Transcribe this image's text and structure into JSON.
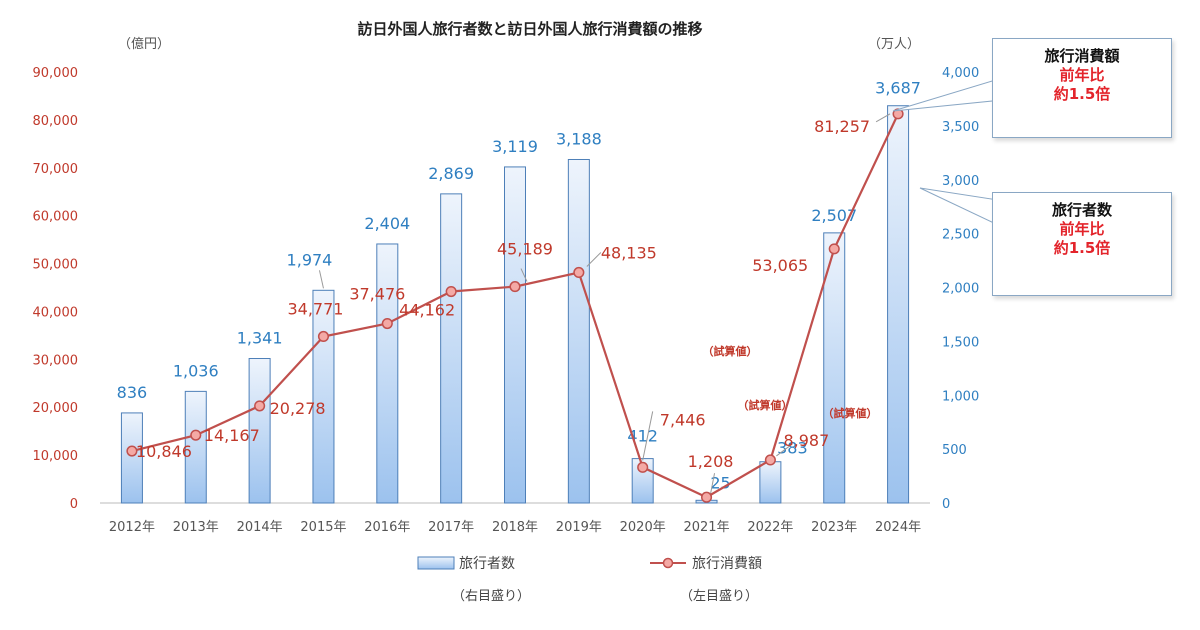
{
  "chart_data": {
    "type": "bar+line",
    "title": "訪日外国人旅行者数と訪日外国人旅行消費額の推移",
    "left_axis": {
      "unit": "（億円）",
      "min": 0,
      "max": 90000,
      "step": 10000,
      "ticks": [
        "0",
        "10,000",
        "20,000",
        "30,000",
        "40,000",
        "50,000",
        "60,000",
        "70,000",
        "80,000",
        "90,000"
      ]
    },
    "right_axis": {
      "unit": "（万人）",
      "min": 0,
      "max": 4000,
      "step": 500,
      "ticks": [
        "0",
        "500",
        "1,000",
        "1,500",
        "2,000",
        "2,500",
        "3,000",
        "3,500",
        "4,000"
      ]
    },
    "categories": [
      "2012年",
      "2013年",
      "2014年",
      "2015年",
      "2016年",
      "2017年",
      "2018年",
      "2019年",
      "2020年",
      "2021年",
      "2022年",
      "2023年",
      "2024年"
    ],
    "series": [
      {
        "name": "旅行者数",
        "type": "bar",
        "axis": "right",
        "values": [
          836,
          1036,
          1341,
          1974,
          2404,
          2869,
          3119,
          3188,
          412,
          25,
          383,
          2507,
          3687
        ],
        "labels": [
          "836",
          "1,036",
          "1,341",
          "1,974",
          "2,404",
          "2,869",
          "3,119",
          "3,188",
          "412",
          "25",
          "383",
          "2,507",
          "3,687"
        ]
      },
      {
        "name": "旅行消費額",
        "type": "line",
        "axis": "left",
        "values": [
          10846,
          14167,
          20278,
          34771,
          37476,
          44162,
          45189,
          48135,
          7446,
          1208,
          8987,
          53065,
          81257
        ],
        "labels": [
          "10,846",
          "14,167",
          "20,278",
          "34,771",
          "37,476",
          "44,162",
          "45,189",
          "48,135",
          "7,446",
          "1,208",
          "8,987",
          "53,065",
          "81,257"
        ]
      }
    ],
    "notes": [
      "（試算値）",
      "（試算値）",
      "（試算値）"
    ],
    "legend": [
      {
        "name": "旅行者数",
        "sub": "（右目盛り）"
      },
      {
        "name": "旅行消費額",
        "sub": "（左目盛り）"
      }
    ],
    "colors": {
      "bar_fill_top": "#eef4fc",
      "bar_fill_bottom": "#9cc2ee",
      "bar_stroke": "#4d7fb8",
      "line": "#c0504d",
      "marker_fill": "#f4a9a5",
      "left_text": "#c0392b",
      "right_text": "#2f7fc1"
    }
  },
  "callouts": {
    "spending": {
      "title": "旅行消費額",
      "line1": "前年比",
      "line2": "約1.5倍"
    },
    "visitors": {
      "title": "旅行者数",
      "line1": "前年比",
      "line2": "約1.5倍"
    }
  }
}
